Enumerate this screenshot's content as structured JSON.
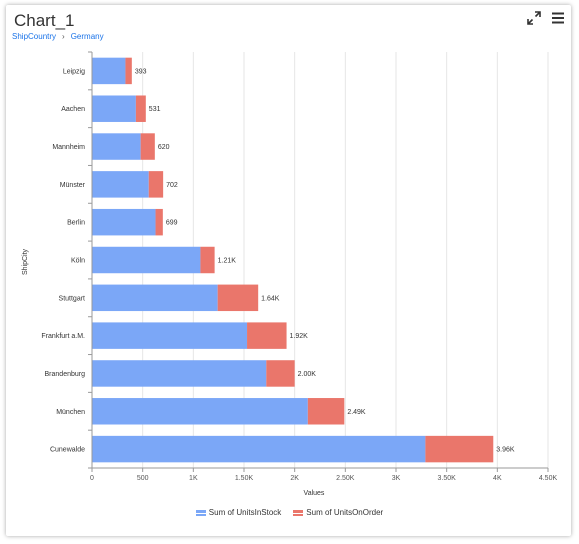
{
  "header": {
    "title": "Chart_1",
    "breadcrumb_root": "ShipCountry",
    "breadcrumb_current": "Germany"
  },
  "icons": {
    "expand": "expand-icon",
    "menu": "hamburger-menu-icon"
  },
  "colors": {
    "stock": "#7ba7f7",
    "order": "#ea766b",
    "grid": "#e6e6e6",
    "axis": "#9a9a9a"
  },
  "chart_data": {
    "type": "bar",
    "orientation": "horizontal",
    "stacked": true,
    "categories": [
      "Leipzig",
      "Aachen",
      "Mannheim",
      "Münster",
      "Berlin",
      "Köln",
      "Stuttgart",
      "Frankfurt a.M.",
      "Brandenburg",
      "München",
      "Cunewalde"
    ],
    "series": [
      {
        "name": "Sum of UnitsInStock",
        "values": [
          330,
          433,
          480,
          560,
          627,
          1070,
          1240,
          1530,
          1720,
          2130,
          3290
        ]
      },
      {
        "name": "Sum of UnitsOnOrder",
        "values": [
          63,
          98,
          140,
          142,
          72,
          140,
          400,
          390,
          280,
          360,
          670
        ]
      }
    ],
    "data_labels": [
      "393",
      "531",
      "620",
      "702",
      "699",
      "1.21K",
      "1.64K",
      "1.92K",
      "2.00K",
      "2.49K",
      "3.96K"
    ],
    "xlim": [
      0,
      4500
    ],
    "x_ticks": [
      "0",
      "500",
      "1K",
      "1.50K",
      "2K",
      "2.50K",
      "3K",
      "3.50K",
      "4K",
      "4.50K"
    ],
    "xlabel": "Values",
    "ylabel": "ShipCity",
    "grid": true,
    "legend_position": "bottom"
  }
}
